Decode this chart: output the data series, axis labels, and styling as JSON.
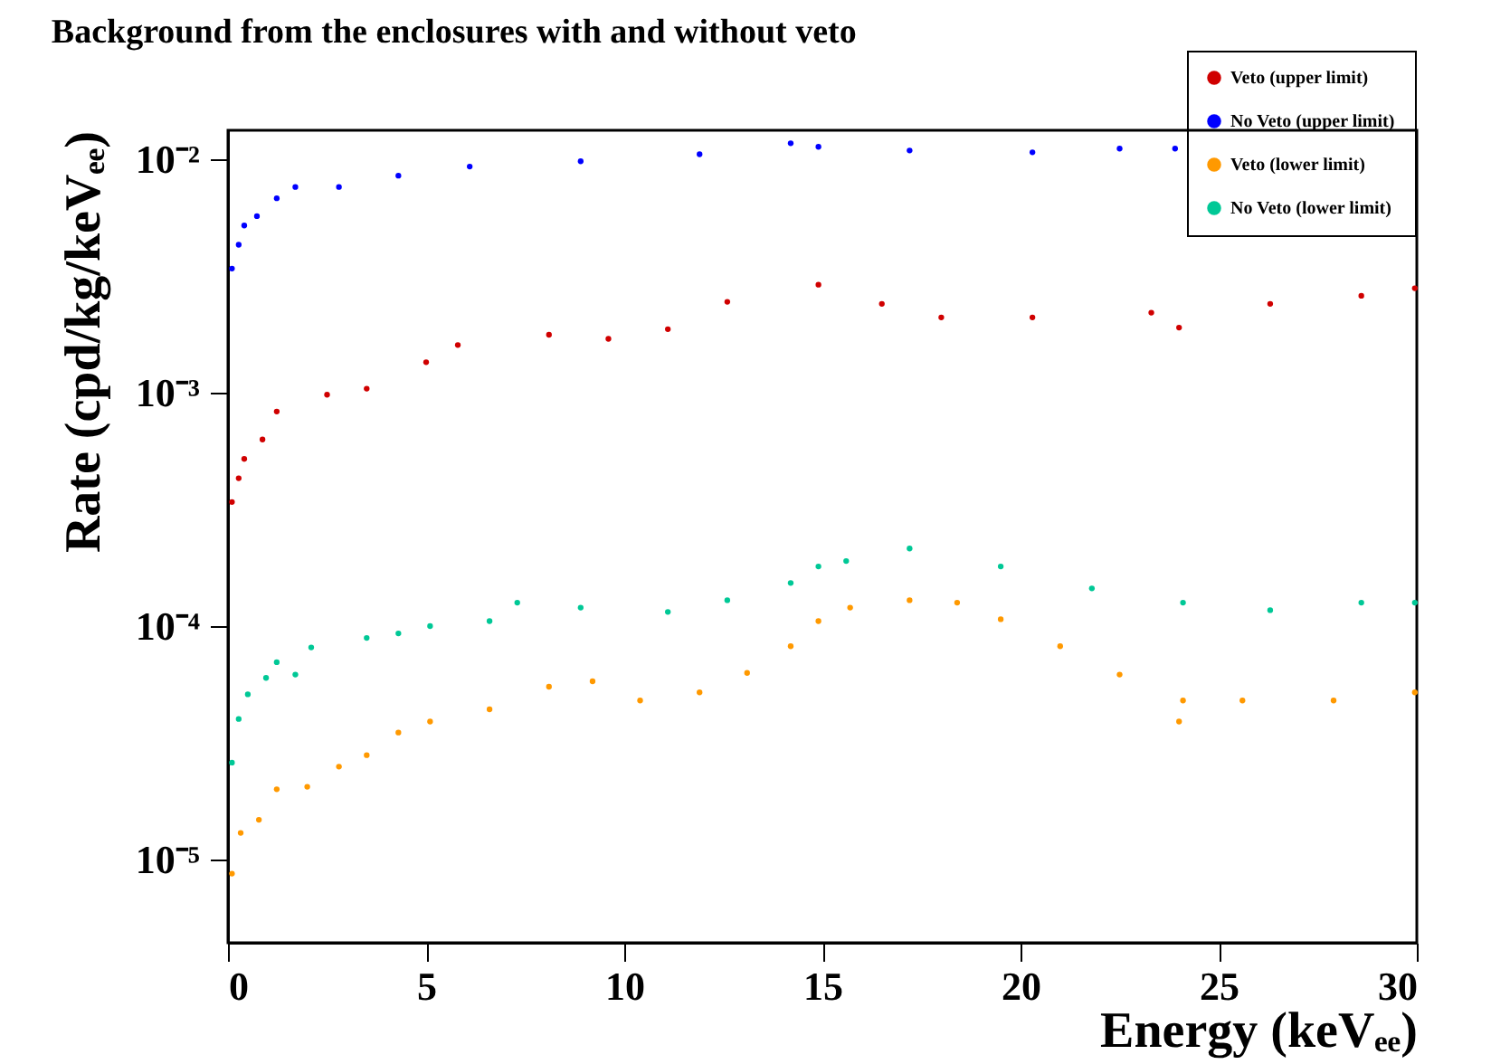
{
  "chart_data": {
    "type": "scatter",
    "title": "Background from the enclosures with and without veto",
    "xlabel": "Energy (keVₑₑ)",
    "ylabel": "Rate (cpd/kg/keVₑₑ)",
    "xlim": [
      0,
      30
    ],
    "xticks": [
      0,
      5,
      10,
      15,
      20,
      25,
      30
    ],
    "ylim": [
      4.4e-06,
      0.0133
    ],
    "log": "y",
    "yticks": [
      {
        "value": 1e-05,
        "label": "10⁻⁵"
      },
      {
        "value": 0.0001,
        "label": "10⁻⁴"
      },
      {
        "value": 0.001,
        "label": "10⁻³"
      },
      {
        "value": 0.01,
        "label": "10⁻²"
      }
    ],
    "grid": false,
    "legend": "top right",
    "marker": "circle",
    "series": [
      {
        "name": "Veto (upper limit)",
        "color": "#d00000",
        "x": [
          0.1,
          0.27,
          0.41,
          0.87,
          1.23,
          2.5,
          3.5,
          5.0,
          5.8,
          8.1,
          9.6,
          11.1,
          12.6,
          14.9,
          16.5,
          18.0,
          20.3,
          23.3,
          24.0,
          26.3,
          28.6,
          29.95
        ],
        "values": [
          0.00034,
          0.00043,
          0.00052,
          0.00063,
          0.00083,
          0.00098,
          0.00104,
          0.00135,
          0.0016,
          0.00177,
          0.0017,
          0.00187,
          0.00245,
          0.0029,
          0.0024,
          0.0021,
          0.0021,
          0.0022,
          0.0019,
          0.0024,
          0.0026,
          0.0028
        ]
      },
      {
        "name": "No Veto (upper limit)",
        "color": "#0000ff",
        "x": [
          0.1,
          0.27,
          0.41,
          0.73,
          1.23,
          1.7,
          2.8,
          4.3,
          6.1,
          8.9,
          11.9,
          14.2,
          14.9,
          17.2,
          20.3,
          22.5,
          23.9
        ],
        "values": [
          0.0034,
          0.0043,
          0.0052,
          0.0057,
          0.0068,
          0.0076,
          0.0076,
          0.0085,
          0.0093,
          0.0098,
          0.0105,
          0.0117,
          0.0113,
          0.0109,
          0.0107,
          0.0111,
          0.0111
        ]
      },
      {
        "name": "Veto (lower limit)",
        "color": "#ff9900",
        "x": [
          0.1,
          0.32,
          0.78,
          1.23,
          2.0,
          2.8,
          3.5,
          4.3,
          5.1,
          6.6,
          8.1,
          9.2,
          10.4,
          11.9,
          13.1,
          14.2,
          14.9,
          15.7,
          17.2,
          18.4,
          19.5,
          21.0,
          22.5,
          24.0,
          24.1,
          25.6,
          27.9,
          29.95
        ],
        "values": [
          8.7e-06,
          1.3e-05,
          1.48e-05,
          2e-05,
          2.05e-05,
          2.5e-05,
          2.8e-05,
          3.5e-05,
          3.9e-05,
          4.4e-05,
          5.5e-05,
          5.8e-05,
          4.8e-05,
          5.2e-05,
          6.3e-05,
          8.2e-05,
          0.000105,
          0.00012,
          0.000129,
          0.000126,
          0.000107,
          8.2e-05,
          6.2e-05,
          3.9e-05,
          4.8e-05,
          4.8e-05,
          4.8e-05,
          5.2e-05
        ]
      },
      {
        "name": "No Veto (lower limit)",
        "color": "#00c896",
        "x": [
          0.1,
          0.27,
          0.5,
          0.96,
          1.23,
          1.7,
          2.1,
          3.5,
          4.3,
          5.1,
          6.6,
          7.3,
          8.9,
          11.1,
          12.6,
          14.2,
          14.9,
          15.6,
          17.2,
          19.5,
          21.8,
          24.1,
          26.3,
          28.6,
          29.95
        ],
        "values": [
          2.6e-05,
          4e-05,
          5.1e-05,
          6e-05,
          7e-05,
          6.2e-05,
          8.1e-05,
          8.9e-05,
          9.3e-05,
          0.0001,
          0.000105,
          0.000126,
          0.00012,
          0.000115,
          0.000129,
          0.000153,
          0.00018,
          0.00019,
          0.000215,
          0.00018,
          0.000145,
          0.000126,
          0.000117,
          0.000126,
          0.000126
        ]
      }
    ]
  }
}
